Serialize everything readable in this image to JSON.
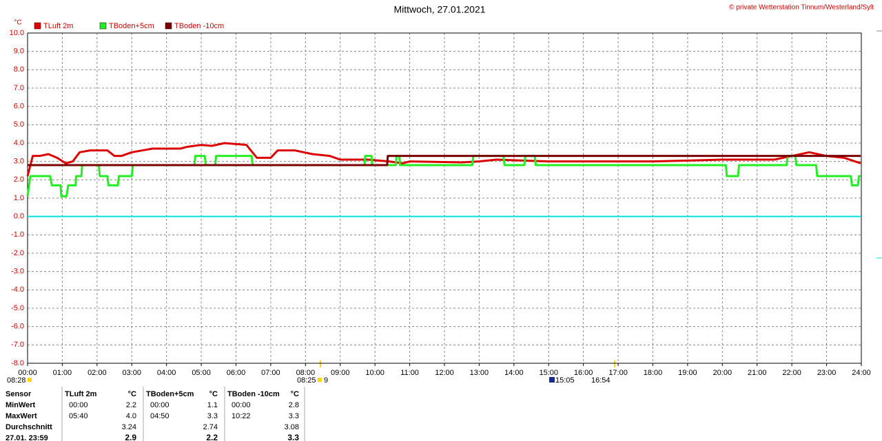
{
  "chart_data": {
    "type": "line",
    "title": "Mittwoch, 27.01.2021",
    "credit": "© private Wetterstation Tinnum/Westerland/Sylt",
    "y_unit": "°C",
    "legend": "top-left",
    "grid": true,
    "reference_line": {
      "value": 0,
      "color": "#00e0e0"
    },
    "xlim": [
      0,
      24
    ],
    "ylim": [
      -8,
      10
    ],
    "xticks": [
      {
        "value": 0,
        "label": "00:00"
      },
      {
        "value": 1,
        "label": "01:00"
      },
      {
        "value": 2,
        "label": "02:00"
      },
      {
        "value": 3,
        "label": "03:00"
      },
      {
        "value": 4,
        "label": "04:00"
      },
      {
        "value": 5,
        "label": "05:00"
      },
      {
        "value": 6,
        "label": "06:00"
      },
      {
        "value": 7,
        "label": "07:00"
      },
      {
        "value": 8,
        "label": "08:00"
      },
      {
        "value": 9,
        "label": "09:00"
      },
      {
        "value": 10,
        "label": "10:00"
      },
      {
        "value": 11,
        "label": "11:00"
      },
      {
        "value": 12,
        "label": "12:00"
      },
      {
        "value": 13,
        "label": "13:00"
      },
      {
        "value": 14,
        "label": "14:00"
      },
      {
        "value": 15,
        "label": "15:00"
      },
      {
        "value": 16,
        "label": "16:00"
      },
      {
        "value": 17,
        "label": "17:00"
      },
      {
        "value": 18,
        "label": "18:00"
      },
      {
        "value": 19,
        "label": "19:00"
      },
      {
        "value": 20,
        "label": "20:00"
      },
      {
        "value": 21,
        "label": "21:00"
      },
      {
        "value": 22,
        "label": "22:00"
      },
      {
        "value": 23,
        "label": "23:00"
      },
      {
        "value": 24,
        "label": "24:00"
      }
    ],
    "yticks": [
      {
        "value": 10,
        "label": "10.0"
      },
      {
        "value": 9,
        "label": "9.0"
      },
      {
        "value": 8,
        "label": "8.0"
      },
      {
        "value": 7,
        "label": "7.0"
      },
      {
        "value": 6,
        "label": "6.0"
      },
      {
        "value": 5,
        "label": "5.0"
      },
      {
        "value": 4,
        "label": "4.0"
      },
      {
        "value": 3,
        "label": "3.0"
      },
      {
        "value": 2,
        "label": "2.0"
      },
      {
        "value": 1,
        "label": "1.0"
      },
      {
        "value": 0,
        "label": "0.0"
      },
      {
        "value": -1,
        "label": "-1.0"
      },
      {
        "value": -2,
        "label": "-2.0"
      },
      {
        "value": -3,
        "label": "-3.0"
      },
      {
        "value": -4,
        "label": "-4.0"
      },
      {
        "value": -5,
        "label": "-5.0"
      },
      {
        "value": -6,
        "label": "-6.0"
      },
      {
        "value": -7,
        "label": "-7.0"
      },
      {
        "value": -8,
        "label": "-8.0"
      }
    ],
    "series": [
      {
        "name": "TLuft 2m",
        "color": "#dd0000",
        "x": [
          0,
          0.15,
          0.35,
          0.6,
          0.85,
          1.1,
          1.3,
          1.5,
          1.8,
          2.3,
          2.5,
          2.7,
          3.0,
          3.3,
          3.6,
          4.4,
          4.6,
          5.0,
          5.3,
          5.67,
          6.3,
          6.6,
          7.0,
          7.2,
          7.7,
          8.2,
          8.7,
          9.0,
          9.8,
          10.4,
          10.8,
          11.0,
          12.5,
          13.0,
          13.5,
          15.0,
          16.5,
          18.0,
          20.0,
          21.5,
          22.0,
          22.5,
          23.0,
          23.5,
          23.98
        ],
        "values": [
          2.2,
          3.3,
          3.3,
          3.4,
          3.2,
          2.9,
          3.0,
          3.5,
          3.6,
          3.6,
          3.3,
          3.3,
          3.5,
          3.6,
          3.7,
          3.7,
          3.8,
          3.9,
          3.85,
          4.0,
          3.9,
          3.2,
          3.2,
          3.6,
          3.6,
          3.4,
          3.3,
          3.1,
          3.1,
          3.0,
          2.9,
          3.0,
          2.95,
          3.0,
          3.1,
          3.0,
          3.0,
          3.0,
          3.1,
          3.1,
          3.3,
          3.5,
          3.3,
          3.2,
          2.9
        ]
      },
      {
        "name": "TBoden+5cm",
        "color": "#22ee22",
        "x": [
          0,
          0.08,
          0.65,
          0.7,
          0.95,
          0.97,
          1.12,
          1.17,
          1.38,
          1.4,
          1.55,
          1.57,
          2.05,
          2.08,
          2.3,
          2.33,
          2.6,
          2.63,
          3.0,
          3.03,
          4.8,
          4.83,
          5.1,
          5.13,
          5.4,
          5.43,
          6.45,
          6.48,
          9.7,
          9.72,
          9.9,
          9.92,
          10.6,
          10.62,
          10.7,
          10.72,
          12.8,
          12.83,
          13.7,
          13.73,
          14.3,
          14.33,
          14.6,
          14.63,
          20.1,
          20.13,
          20.45,
          20.48,
          21.85,
          21.88,
          22.1,
          22.13,
          22.7,
          22.73,
          23.7,
          23.73,
          23.9,
          23.93,
          23.98
        ],
        "values": [
          1.1,
          2.2,
          2.2,
          1.7,
          1.7,
          1.1,
          1.1,
          1.7,
          1.7,
          2.2,
          2.2,
          2.8,
          2.8,
          2.2,
          2.2,
          1.7,
          1.7,
          2.2,
          2.2,
          2.8,
          2.8,
          3.3,
          3.3,
          2.8,
          2.8,
          3.3,
          3.3,
          2.8,
          2.8,
          3.3,
          3.3,
          2.8,
          2.8,
          3.3,
          3.3,
          2.8,
          2.8,
          3.3,
          3.3,
          2.8,
          2.8,
          3.3,
          3.3,
          2.8,
          2.8,
          2.2,
          2.2,
          2.8,
          2.8,
          3.3,
          3.3,
          2.8,
          2.8,
          2.2,
          2.2,
          1.7,
          1.7,
          2.2,
          2.2
        ]
      },
      {
        "name": "TBoden -10cm",
        "color": "#7a0000",
        "x": [
          0,
          10.35,
          10.37,
          23.98
        ],
        "values": [
          2.8,
          2.8,
          3.3,
          3.3
        ]
      }
    ],
    "markers": [
      "08:28",
      "08:25",
      "9",
      "15:05",
      "16:54"
    ],
    "table": {
      "header": {
        "label": "Sensor",
        "cells": [
          {
            "name": "TLuft 2m",
            "unit": "°C"
          },
          {
            "name": "TBoden+5cm",
            "unit": "°C"
          },
          {
            "name": "TBoden -10cm",
            "unit": "°C"
          }
        ]
      },
      "rows": [
        {
          "label": "MinWert",
          "cells": [
            {
              "time": "00:00",
              "value": "2.2"
            },
            {
              "time": "00:00",
              "value": "1.1"
            },
            {
              "time": "00:00",
              "value": "2.8"
            }
          ]
        },
        {
          "label": "MaxWert",
          "cells": [
            {
              "time": "05:40",
              "value": "4.0"
            },
            {
              "time": "04:50",
              "value": "3.3"
            },
            {
              "time": "10:22",
              "value": "3.3"
            }
          ]
        },
        {
          "label": "Durchschnitt",
          "cells": [
            {
              "value": "3.24"
            },
            {
              "value": "2.74"
            },
            {
              "value": "3.08"
            }
          ]
        },
        {
          "label": "27.01. 23:59",
          "cells": [
            {
              "value": "2.9"
            },
            {
              "value": "2.2"
            },
            {
              "value": "3.3"
            }
          ],
          "bold": true
        }
      ]
    }
  }
}
